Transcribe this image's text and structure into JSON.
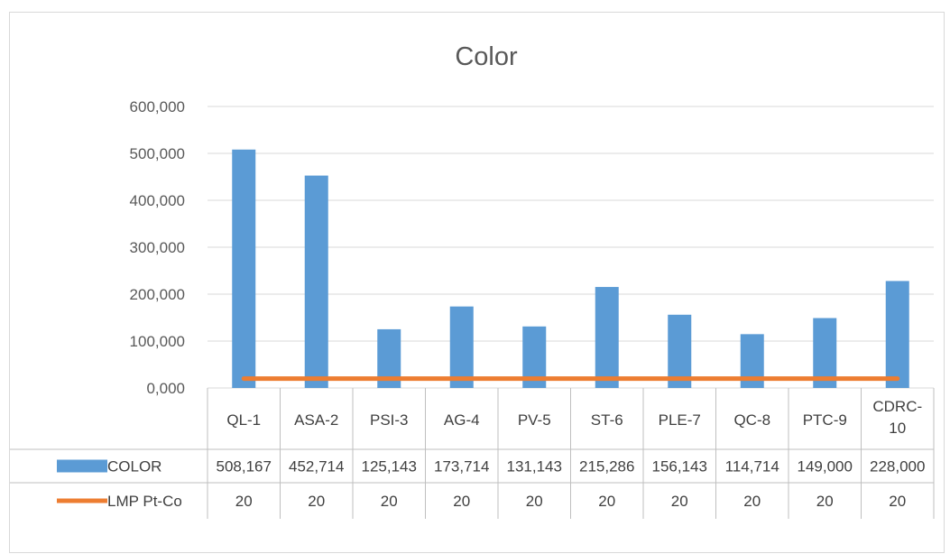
{
  "chart_data": {
    "type": "bar",
    "title": "Color",
    "categories": [
      "QL-1",
      "ASA-2",
      "PSI-3",
      "AG-4",
      "PV-5",
      "ST-6",
      "PLE-7",
      "QC-8",
      "PTC-9",
      "CDRC-10"
    ],
    "category_lines": [
      [
        "QL-1"
      ],
      [
        "ASA-2"
      ],
      [
        "PSI-3"
      ],
      [
        "AG-4"
      ],
      [
        "PV-5"
      ],
      [
        "ST-6"
      ],
      [
        "PLE-7"
      ],
      [
        "QC-8"
      ],
      [
        "PTC-9"
      ],
      [
        "CDRC-",
        "10"
      ]
    ],
    "series": [
      {
        "name": "COLOR",
        "type": "bar",
        "color": "#5b9bd5",
        "values": [
          508.167,
          452.714,
          125.143,
          173.714,
          131.143,
          215.286,
          156.143,
          114.714,
          149.0,
          228.0
        ],
        "labels": [
          "508,167",
          "452,714",
          "125,143",
          "173,714",
          "131,143",
          "215,286",
          "156,143",
          "114,714",
          "149,000",
          "228,000"
        ]
      },
      {
        "name": "LMP Pt-Co",
        "type": "line",
        "color": "#ed7d31",
        "values": [
          20,
          20,
          20,
          20,
          20,
          20,
          20,
          20,
          20,
          20
        ],
        "labels": [
          "20",
          "20",
          "20",
          "20",
          "20",
          "20",
          "20",
          "20",
          "20",
          "20"
        ]
      }
    ],
    "ylim": [
      0,
      600
    ],
    "yticks": [
      0,
      100,
      200,
      300,
      400,
      500,
      600
    ],
    "ytick_labels": [
      "0,000",
      "100,000",
      "200,000",
      "300,000",
      "400,000",
      "500,000",
      "600,000"
    ],
    "grid": true,
    "legend": "data-table"
  }
}
